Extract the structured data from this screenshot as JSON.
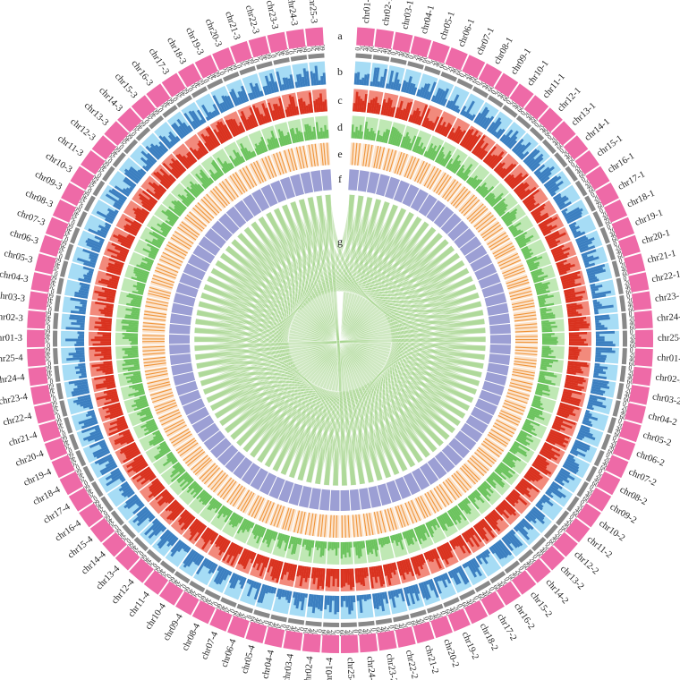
{
  "figure": {
    "genomes": [
      "1",
      "2",
      "3",
      "4"
    ],
    "genome_order": [
      "1",
      "2",
      "4",
      "3"
    ],
    "chromosomes": [
      "chr01",
      "chr02",
      "chr03",
      "chr04",
      "chr05",
      "chr06",
      "chr07",
      "chr08",
      "chr09",
      "chr10",
      "chr11",
      "chr12",
      "chr13",
      "chr14",
      "chr15",
      "chr16",
      "chr17",
      "chr18",
      "chr19",
      "chr20",
      "chr21",
      "chr22",
      "chr23",
      "chr24",
      "chr25"
    ],
    "chromosome_labels": {
      "1": [
        "chr01-1",
        "chr02-1",
        "chr03-1",
        "chr04-1",
        "chr05-1",
        "chr06-1",
        "chr07-1",
        "chr08-1",
        "chr09-1",
        "chr10-1",
        "chr11-1",
        "chr12-1",
        "chr13-1",
        "chr14-1",
        "chr15-1",
        "chr16-1",
        "chr17-1",
        "chr18-1",
        "chr19-1",
        "chr20-1",
        "chr21-1",
        "chr22-1",
        "chr23-1",
        "chr24-1",
        "chr25-1"
      ],
      "2": [
        "chr01-2",
        "chr02-2",
        "chr03-2",
        "chr04-2",
        "chr05-2",
        "chr06-2",
        "chr07-2",
        "chr08-2",
        "chr09-2",
        "chr10-2",
        "chr11-2",
        "chr12-2",
        "chr13-2",
        "chr14-2",
        "chr15-2",
        "chr16-2",
        "chr17-2",
        "chr18-2",
        "chr19-2",
        "chr20-2",
        "chr21-2",
        "chr22-2",
        "chr23-2",
        "chr24-2",
        "chr25-2"
      ],
      "3": [
        "chr01-3",
        "chr02-3",
        "chr03-3",
        "chr04-3",
        "chr05-3",
        "chr06-3",
        "chr07-3",
        "chr08-3",
        "chr09-3",
        "chr10-3",
        "chr11-3",
        "chr12-3",
        "chr13-3",
        "chr14-3",
        "chr15-3",
        "chr16-3",
        "chr17-3",
        "chr18-3",
        "chr19-3",
        "chr20-3",
        "chr21-3",
        "chr22-3",
        "chr23-3",
        "chr24-3",
        "chr25-3"
      ],
      "4": [
        "chr01-4",
        "chr02-4",
        "chr03-4",
        "chr04-4",
        "chr05-4",
        "chr06-4",
        "chr07-4",
        "chr08-4",
        "chr09-4",
        "chr10-4",
        "chr11-4",
        "chr12-4",
        "chr13-4",
        "chr14-4",
        "chr15-4",
        "chr16-4",
        "chr17-4",
        "chr18-4",
        "chr19-4",
        "chr20-4",
        "chr21-4",
        "chr22-4",
        "chr23-4",
        "chr24-4",
        "chr25-4"
      ]
    },
    "tick_labels": [
      "0",
      "20",
      "40",
      "60"
    ],
    "track_letters": [
      "a",
      "b",
      "c",
      "d",
      "e",
      "f",
      "g"
    ],
    "colors": {
      "karyotype": "#ee6aa7",
      "ticks": "#888888",
      "track_b_bg": "#a6dcf5",
      "track_b_fg": "#3c7fc0",
      "track_c_bg": "#f28a7c",
      "track_c_fg": "#d9321f",
      "track_d_bg": "#bfe8b4",
      "track_d_fg": "#6cc35e",
      "track_e_bg": "#fbe3cc",
      "track_e_fg": "#f0953a",
      "track_f": "#9c9fd4",
      "links": "#a7d68f"
    }
  }
}
